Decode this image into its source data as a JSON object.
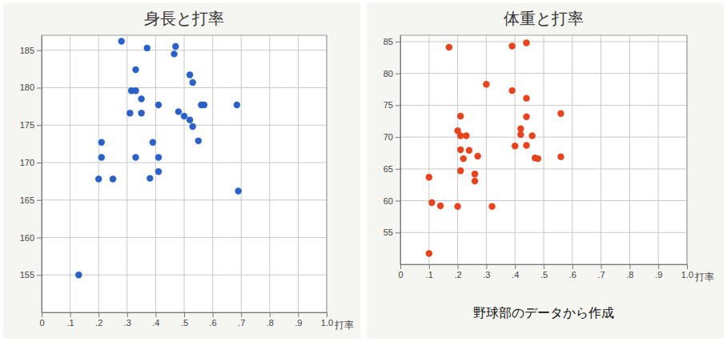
{
  "chart_data": [
    {
      "type": "scatter",
      "title": "身長と打率",
      "x_label": "打率",
      "x": [
        0.28,
        0.37,
        0.47,
        0.465,
        0.33,
        0.52,
        0.53,
        0.315,
        0.33,
        0.35,
        0.41,
        0.31,
        0.35,
        0.48,
        0.5,
        0.52,
        0.53,
        0.56,
        0.57,
        0.685,
        0.21,
        0.39,
        0.55,
        0.21,
        0.33,
        0.41,
        0.2,
        0.25,
        0.38,
        0.41,
        0.69,
        0.13
      ],
      "y": [
        186.2,
        185.3,
        185.5,
        184.5,
        182.4,
        181.7,
        180.7,
        179.6,
        179.6,
        178.5,
        177.7,
        176.6,
        176.6,
        176.8,
        176.2,
        175.7,
        174.8,
        177.7,
        177.7,
        177.7,
        172.7,
        172.7,
        172.9,
        170.7,
        170.7,
        170.7,
        167.8,
        167.8,
        167.9,
        168.8,
        166.2,
        155
      ],
      "color": "#2a62c9",
      "marker": "circle",
      "grid": true,
      "xlim": [
        0,
        1
      ],
      "ylim": [
        150,
        187
      ],
      "xticks": [
        0,
        {
          "value": 0.1,
          "label": ".1"
        },
        {
          "value": 0.2,
          "label": ".2"
        },
        {
          "value": 0.3,
          "label": ".3"
        },
        {
          "value": 0.4,
          "label": ".4"
        },
        {
          "value": 0.5,
          "label": ".5"
        },
        {
          "value": 0.6,
          "label": ".6"
        },
        {
          "value": 0.7,
          "label": ".7"
        },
        {
          "value": 0.8,
          "label": ".8"
        },
        {
          "value": 0.9,
          "label": ".9"
        },
        {
          "value": 1,
          "label": "1.0"
        }
      ],
      "yticks": [
        155,
        160,
        165,
        170,
        175,
        180,
        185
      ]
    },
    {
      "type": "scatter",
      "title": "体重と打率",
      "x_label": "打率",
      "x": [
        0.1,
        0.1,
        0.11,
        0.14,
        0.17,
        0.2,
        0.21,
        0.21,
        0.2,
        0.21,
        0.23,
        0.21,
        0.22,
        0.24,
        0.27,
        0.3,
        0.26,
        0.26,
        0.32,
        0.39,
        0.39,
        0.44,
        0.44,
        0.44,
        0.4,
        0.42,
        0.42,
        0.46,
        0.44,
        0.47,
        0.48,
        0.56,
        0.56
      ],
      "y": [
        51.7,
        63.7,
        59.7,
        59.2,
        84.1,
        59.1,
        64.7,
        68,
        71,
        70.2,
        70.2,
        73.3,
        66.6,
        67.9,
        67,
        78.3,
        64.2,
        63.1,
        59.1,
        84.3,
        77.3,
        84.8,
        76.1,
        73.2,
        68.6,
        71.3,
        70.4,
        70.2,
        68.7,
        66.7,
        66.6,
        73.7,
        66.9
      ],
      "color": "#e8431c",
      "marker": "circle",
      "grid": true,
      "xlim": [
        0,
        1
      ],
      "ylim": [
        50,
        86
      ],
      "xticks": [
        0,
        {
          "value": 0.1,
          "label": ".1"
        },
        {
          "value": 0.2,
          "label": ".2"
        },
        {
          "value": 0.3,
          "label": ".3"
        },
        {
          "value": 0.4,
          "label": ".4"
        },
        {
          "value": 0.5,
          "label": ".5"
        },
        {
          "value": 0.6,
          "label": ".6"
        },
        {
          "value": 0.7,
          "label": ".7"
        },
        {
          "value": 0.8,
          "label": ".8"
        },
        {
          "value": 0.9,
          "label": ".9"
        },
        {
          "value": 1,
          "label": "1.0"
        }
      ],
      "yticks": [
        55,
        60,
        65,
        70,
        75,
        80,
        85
      ],
      "annotation": "野球部のデータから作成"
    }
  ]
}
